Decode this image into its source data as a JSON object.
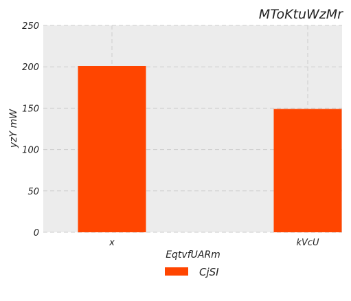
{
  "chart_data": {
    "type": "bar",
    "title": "MToKtuWzMr",
    "xlabel": "EqtvfUARm",
    "ylabel": "yzY mW",
    "categories": [
      "x",
      "kVcU"
    ],
    "series": [
      {
        "name": "CjSI",
        "values": [
          201,
          149
        ],
        "color": "#ff4500"
      }
    ],
    "ylim": [
      0,
      250
    ],
    "yticks": [
      0,
      50,
      100,
      150,
      200,
      250
    ],
    "grid": true,
    "legend_position": "bottom-center",
    "plot_background": "#ececec"
  }
}
